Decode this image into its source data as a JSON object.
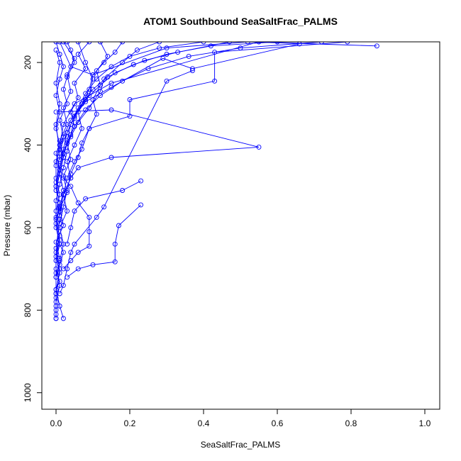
{
  "chart_data": {
    "type": "line",
    "title": "ATOM1 Southbound SeaSaltFrac_PALMS",
    "xlabel": "SeaSaltFrac_PALMS",
    "ylabel": "Pressure (mbar)",
    "xlim": [
      0,
      1.0
    ],
    "ylim_pressure": [
      150,
      1040
    ],
    "y_reversed": true,
    "x_ticks": [
      "0.0",
      "0.2",
      "0.4",
      "0.6",
      "0.8",
      "1.0"
    ],
    "y_ticks": [
      "200",
      "400",
      "600",
      "800",
      "1000"
    ],
    "grid": false,
    "color": "#0000ff",
    "series": [
      {
        "points": [
          [
            0.01,
            150
          ],
          [
            0.04,
            210
          ],
          [
            0.1,
            230
          ],
          [
            0.3,
            165
          ],
          [
            0.52,
            150
          ],
          [
            0.87,
            160
          ],
          [
            0.55,
            150
          ],
          [
            0.15,
            250
          ],
          [
            0.05,
            300
          ],
          [
            0.02,
            350
          ],
          [
            0.01,
            400
          ],
          [
            0.0,
            450
          ]
        ]
      },
      {
        "points": [
          [
            0.79,
            150
          ],
          [
            0.43,
            175
          ],
          [
            0.43,
            245
          ],
          [
            0.2,
            290
          ],
          [
            0.2,
            330
          ],
          [
            0.09,
            360
          ],
          [
            0.07,
            410
          ],
          [
            0.05,
            440
          ],
          [
            0.03,
            480
          ],
          [
            0.02,
            520
          ],
          [
            0.01,
            570
          ]
        ]
      },
      {
        "points": [
          [
            0.0,
            320
          ],
          [
            0.15,
            315
          ],
          [
            0.55,
            405
          ],
          [
            0.15,
            430
          ],
          [
            0.06,
            455
          ],
          [
            0.04,
            480
          ],
          [
            0.02,
            520
          ],
          [
            0.01,
            560
          ]
        ]
      },
      {
        "points": [
          [
            0.66,
            155
          ],
          [
            0.37,
            215
          ],
          [
            0.29,
            190
          ],
          [
            0.15,
            260
          ],
          [
            0.08,
            295
          ],
          [
            0.05,
            330
          ],
          [
            0.03,
            370
          ],
          [
            0.01,
            410
          ]
        ]
      },
      {
        "points": [
          [
            0.37,
            220
          ],
          [
            0.3,
            245
          ],
          [
            0.13,
            550
          ],
          [
            0.11,
            575
          ],
          [
            0.05,
            640
          ],
          [
            0.04,
            660
          ],
          [
            0.03,
            700
          ],
          [
            0.02,
            740
          ],
          [
            0.01,
            760
          ]
        ]
      },
      {
        "points": [
          [
            0.23,
            487
          ],
          [
            0.18,
            510
          ],
          [
            0.08,
            530
          ],
          [
            0.05,
            560
          ],
          [
            0.04,
            600
          ],
          [
            0.03,
            640
          ]
        ]
      },
      {
        "points": [
          [
            0.23,
            545
          ],
          [
            0.17,
            595
          ],
          [
            0.16,
            640
          ],
          [
            0.16,
            683
          ],
          [
            0.1,
            690
          ],
          [
            0.06,
            700
          ],
          [
            0.03,
            720
          ]
        ]
      },
      {
        "points": [
          [
            0.0,
            150
          ],
          [
            0.01,
            180
          ],
          [
            0.02,
            210
          ],
          [
            0.01,
            240
          ],
          [
            0.0,
            280
          ],
          [
            0.01,
            320
          ],
          [
            0.0,
            360
          ],
          [
            0.01,
            400
          ],
          [
            0.0,
            440
          ],
          [
            0.0,
            480
          ],
          [
            0.01,
            520
          ],
          [
            0.0,
            560
          ],
          [
            0.0,
            600
          ],
          [
            0.01,
            640
          ],
          [
            0.0,
            680
          ],
          [
            0.0,
            720
          ],
          [
            0.0,
            760
          ],
          [
            0.0,
            800
          ],
          [
            0.0,
            820
          ]
        ]
      },
      {
        "points": [
          [
            0.02,
            150
          ],
          [
            0.05,
            190
          ],
          [
            0.03,
            230
          ],
          [
            0.04,
            270
          ],
          [
            0.02,
            310
          ],
          [
            0.03,
            350
          ],
          [
            0.01,
            390
          ],
          [
            0.02,
            430
          ],
          [
            0.01,
            470
          ],
          [
            0.02,
            510
          ],
          [
            0.01,
            550
          ],
          [
            0.0,
            590
          ],
          [
            0.01,
            630
          ],
          [
            0.0,
            670
          ],
          [
            0.01,
            710
          ],
          [
            0.0,
            750
          ],
          [
            0.01,
            790
          ],
          [
            0.02,
            820
          ]
        ]
      },
      {
        "points": [
          [
            0.06,
            150
          ],
          [
            0.08,
            200
          ],
          [
            0.1,
            240
          ],
          [
            0.09,
            280
          ],
          [
            0.06,
            320
          ],
          [
            0.07,
            360
          ],
          [
            0.05,
            400
          ],
          [
            0.03,
            440
          ],
          [
            0.04,
            480
          ],
          [
            0.02,
            520
          ],
          [
            0.03,
            560
          ],
          [
            0.01,
            600
          ],
          [
            0.02,
            640
          ],
          [
            0.01,
            680
          ],
          [
            0.0,
            720
          ]
        ]
      },
      {
        "points": [
          [
            0.12,
            150
          ],
          [
            0.14,
            185
          ],
          [
            0.11,
            220
          ],
          [
            0.12,
            255
          ],
          [
            0.1,
            290
          ],
          [
            0.11,
            325
          ],
          [
            0.09,
            360
          ],
          [
            0.07,
            395
          ],
          [
            0.06,
            430
          ],
          [
            0.04,
            470
          ],
          [
            0.03,
            510
          ],
          [
            0.02,
            550
          ],
          [
            0.01,
            590
          ]
        ]
      },
      {
        "points": [
          [
            0.28,
            150
          ],
          [
            0.22,
            170
          ],
          [
            0.18,
            200
          ],
          [
            0.13,
            240
          ],
          [
            0.12,
            270
          ],
          [
            0.09,
            310
          ],
          [
            0.06,
            345
          ],
          [
            0.04,
            380
          ],
          [
            0.02,
            420
          ],
          [
            0.01,
            460
          ]
        ]
      },
      {
        "points": [
          [
            0.47,
            150
          ],
          [
            0.33,
            175
          ],
          [
            0.24,
            195
          ],
          [
            0.16,
            225
          ],
          [
            0.12,
            255
          ],
          [
            0.08,
            290
          ],
          [
            0.05,
            330
          ],
          [
            0.03,
            370
          ],
          [
            0.02,
            410
          ],
          [
            0.01,
            450
          ],
          [
            0.0,
            490
          ]
        ]
      },
      {
        "points": [
          [
            0.6,
            150
          ],
          [
            0.42,
            160
          ],
          [
            0.3,
            180
          ],
          [
            0.21,
            205
          ],
          [
            0.14,
            235
          ],
          [
            0.1,
            265
          ],
          [
            0.07,
            300
          ],
          [
            0.04,
            340
          ],
          [
            0.02,
            380
          ],
          [
            0.01,
            420
          ]
        ]
      },
      {
        "points": [
          [
            0.72,
            150
          ],
          [
            0.5,
            165
          ],
          [
            0.36,
            185
          ],
          [
            0.25,
            215
          ],
          [
            0.18,
            245
          ],
          [
            0.12,
            280
          ],
          [
            0.08,
            315
          ],
          [
            0.05,
            355
          ],
          [
            0.03,
            395
          ],
          [
            0.01,
            435
          ]
        ]
      },
      {
        "points": [
          [
            0.03,
            150
          ],
          [
            0.04,
            170
          ],
          [
            0.05,
            200
          ],
          [
            0.03,
            235
          ],
          [
            0.02,
            265
          ],
          [
            0.03,
            300
          ],
          [
            0.01,
            340
          ],
          [
            0.02,
            380
          ],
          [
            0.0,
            420
          ],
          [
            0.01,
            460
          ],
          [
            0.0,
            500
          ],
          [
            0.01,
            540
          ],
          [
            0.0,
            580
          ],
          [
            0.01,
            620
          ],
          [
            0.0,
            660
          ],
          [
            0.0,
            700
          ],
          [
            0.01,
            740
          ],
          [
            0.0,
            780
          ]
        ]
      },
      {
        "points": [
          [
            0.09,
            150
          ],
          [
            0.06,
            180
          ],
          [
            0.08,
            215
          ],
          [
            0.05,
            250
          ],
          [
            0.06,
            285
          ],
          [
            0.04,
            320
          ],
          [
            0.05,
            355
          ],
          [
            0.03,
            395
          ],
          [
            0.04,
            435
          ],
          [
            0.02,
            475
          ],
          [
            0.03,
            515
          ],
          [
            0.01,
            555
          ],
          [
            0.02,
            595
          ],
          [
            0.0,
            635
          ],
          [
            0.01,
            675
          ]
        ]
      },
      {
        "points": [
          [
            0.4,
            150
          ],
          [
            0.28,
            165
          ],
          [
            0.2,
            185
          ],
          [
            0.15,
            210
          ],
          [
            0.11,
            240
          ],
          [
            0.08,
            275
          ],
          [
            0.06,
            310
          ],
          [
            0.04,
            350
          ],
          [
            0.03,
            390
          ],
          [
            0.02,
            430
          ],
          [
            0.01,
            470
          ],
          [
            0.0,
            510
          ]
        ]
      },
      {
        "points": [
          [
            0.18,
            150
          ],
          [
            0.16,
            175
          ],
          [
            0.13,
            200
          ],
          [
            0.1,
            230
          ],
          [
            0.09,
            265
          ],
          [
            0.07,
            300
          ],
          [
            0.05,
            335
          ],
          [
            0.04,
            375
          ],
          [
            0.03,
            415
          ],
          [
            0.02,
            455
          ],
          [
            0.01,
            495
          ],
          [
            0.0,
            535
          ],
          [
            0.0,
            575
          ]
        ]
      },
      {
        "points": [
          [
            0.01,
            640
          ],
          [
            0.02,
            660
          ],
          [
            0.01,
            690
          ],
          [
            0.0,
            710
          ],
          [
            0.01,
            730
          ],
          [
            0.0,
            750
          ],
          [
            0.0,
            770
          ],
          [
            0.0,
            790
          ],
          [
            0.0,
            810
          ],
          [
            0.0,
            820
          ]
        ]
      },
      {
        "points": [
          [
            0.0,
            170
          ],
          [
            0.01,
            200
          ],
          [
            0.0,
            250
          ],
          [
            0.01,
            300
          ],
          [
            0.0,
            350
          ],
          [
            0.01,
            420
          ],
          [
            0.0,
            500
          ],
          [
            0.01,
            580
          ],
          [
            0.0,
            650
          ],
          [
            0.01,
            700
          ],
          [
            0.0,
            760
          ]
        ]
      },
      {
        "points": [
          [
            0.02,
            480
          ],
          [
            0.04,
            500
          ],
          [
            0.06,
            540
          ],
          [
            0.09,
            575
          ],
          [
            0.09,
            610
          ],
          [
            0.09,
            645
          ],
          [
            0.06,
            660
          ],
          [
            0.04,
            680
          ],
          [
            0.02,
            700
          ]
        ]
      }
    ]
  }
}
